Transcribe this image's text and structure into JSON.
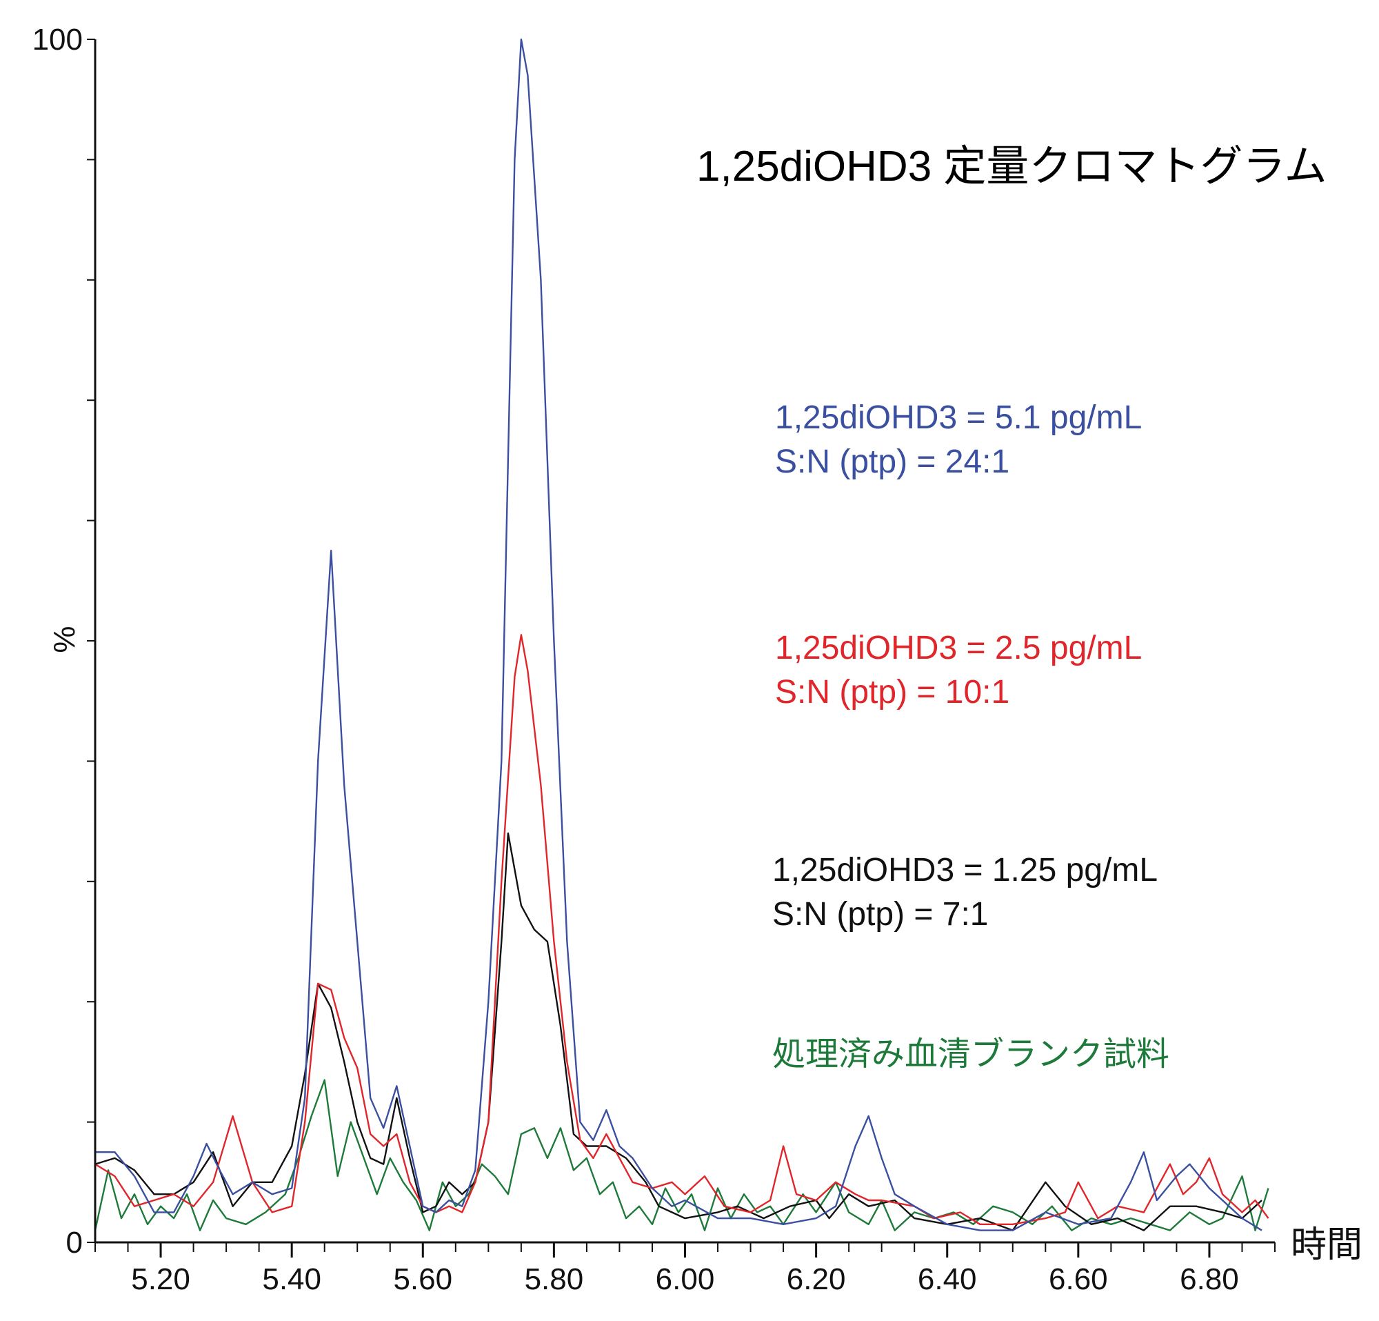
{
  "chart_data": {
    "type": "line",
    "title": "1,25diOHD3 定量クロマトグラム",
    "xlabel": "時間",
    "ylabel": "%",
    "xlim": [
      5.1,
      6.9
    ],
    "ylim": [
      0,
      100
    ],
    "x_ticks": [
      "5.20",
      "5.40",
      "5.60",
      "5.80",
      "6.00",
      "6.20",
      "6.40",
      "6.60",
      "6.80"
    ],
    "x_tick_values": [
      5.2,
      5.4,
      5.6,
      5.8,
      6.0,
      6.2,
      6.4,
      6.6,
      6.8
    ],
    "y_ticks": [
      "0",
      "100"
    ],
    "y_tick_values": [
      0,
      100
    ],
    "grid": false,
    "series": [
      {
        "name": "1,25diOHD3 = 5.1 pg/mL",
        "sn": "S:N (ptp) = 24:1",
        "color": "#3a4fa0",
        "points": [
          [
            5.1,
            7.5
          ],
          [
            5.13,
            7.5
          ],
          [
            5.16,
            5.5
          ],
          [
            5.19,
            2.5
          ],
          [
            5.22,
            2.5
          ],
          [
            5.25,
            5.5
          ],
          [
            5.27,
            8.2
          ],
          [
            5.29,
            6.0
          ],
          [
            5.31,
            4.0
          ],
          [
            5.34,
            5.0
          ],
          [
            5.37,
            4.0
          ],
          [
            5.4,
            4.5
          ],
          [
            5.42,
            12.0
          ],
          [
            5.44,
            40.0
          ],
          [
            5.46,
            57.5
          ],
          [
            5.48,
            38.0
          ],
          [
            5.5,
            25.0
          ],
          [
            5.52,
            12.0
          ],
          [
            5.54,
            9.5
          ],
          [
            5.56,
            13.0
          ],
          [
            5.58,
            8.0
          ],
          [
            5.6,
            3.0
          ],
          [
            5.62,
            2.5
          ],
          [
            5.64,
            3.5
          ],
          [
            5.66,
            3.0
          ],
          [
            5.68,
            6.0
          ],
          [
            5.7,
            20.0
          ],
          [
            5.72,
            40.0
          ],
          [
            5.74,
            90.0
          ],
          [
            5.75,
            100.0
          ],
          [
            5.76,
            97.0
          ],
          [
            5.78,
            80.0
          ],
          [
            5.8,
            50.0
          ],
          [
            5.82,
            25.0
          ],
          [
            5.84,
            10.0
          ],
          [
            5.86,
            8.5
          ],
          [
            5.88,
            11.0
          ],
          [
            5.9,
            8.0
          ],
          [
            5.92,
            7.0
          ],
          [
            5.95,
            4.5
          ],
          [
            5.98,
            3.0
          ],
          [
            6.0,
            3.5
          ],
          [
            6.05,
            2.0
          ],
          [
            6.1,
            2.0
          ],
          [
            6.15,
            1.5
          ],
          [
            6.2,
            2.0
          ],
          [
            6.23,
            3.0
          ],
          [
            6.26,
            8.0
          ],
          [
            6.28,
            10.5
          ],
          [
            6.3,
            7.0
          ],
          [
            6.32,
            4.0
          ],
          [
            6.35,
            3.0
          ],
          [
            6.4,
            1.5
          ],
          [
            6.45,
            1.0
          ],
          [
            6.5,
            1.0
          ],
          [
            6.55,
            2.5
          ],
          [
            6.6,
            1.5
          ],
          [
            6.65,
            2.0
          ],
          [
            6.68,
            5.0
          ],
          [
            6.7,
            7.5
          ],
          [
            6.72,
            3.5
          ],
          [
            6.75,
            5.5
          ],
          [
            6.77,
            6.5
          ],
          [
            6.8,
            4.5
          ],
          [
            6.83,
            3.0
          ],
          [
            6.85,
            2.0
          ],
          [
            6.88,
            1.0
          ]
        ]
      },
      {
        "name": "1,25diOHD3 = 2.5 pg/mL",
        "sn": "S:N (ptp) = 10:1",
        "color": "#e0262b",
        "points": [
          [
            5.1,
            6.5
          ],
          [
            5.13,
            5.5
          ],
          [
            5.16,
            3.0
          ],
          [
            5.19,
            3.5
          ],
          [
            5.22,
            4.0
          ],
          [
            5.25,
            3.0
          ],
          [
            5.28,
            5.0
          ],
          [
            5.31,
            10.5
          ],
          [
            5.34,
            5.0
          ],
          [
            5.37,
            2.5
          ],
          [
            5.4,
            3.0
          ],
          [
            5.42,
            10.0
          ],
          [
            5.44,
            21.5
          ],
          [
            5.46,
            21.0
          ],
          [
            5.48,
            17.0
          ],
          [
            5.5,
            14.5
          ],
          [
            5.52,
            9.0
          ],
          [
            5.54,
            8.0
          ],
          [
            5.56,
            9.0
          ],
          [
            5.58,
            5.0
          ],
          [
            5.6,
            3.0
          ],
          [
            5.62,
            2.5
          ],
          [
            5.64,
            3.0
          ],
          [
            5.66,
            2.5
          ],
          [
            5.68,
            5.0
          ],
          [
            5.7,
            10.0
          ],
          [
            5.72,
            30.0
          ],
          [
            5.74,
            47.0
          ],
          [
            5.75,
            50.5
          ],
          [
            5.76,
            47.5
          ],
          [
            5.78,
            38.0
          ],
          [
            5.8,
            25.0
          ],
          [
            5.82,
            15.0
          ],
          [
            5.84,
            8.5
          ],
          [
            5.86,
            7.0
          ],
          [
            5.88,
            9.0
          ],
          [
            5.9,
            7.0
          ],
          [
            5.92,
            5.0
          ],
          [
            5.95,
            4.5
          ],
          [
            5.98,
            5.0
          ],
          [
            6.0,
            4.0
          ],
          [
            6.03,
            5.5
          ],
          [
            6.06,
            3.0
          ],
          [
            6.1,
            2.5
          ],
          [
            6.13,
            3.5
          ],
          [
            6.15,
            8.0
          ],
          [
            6.17,
            4.0
          ],
          [
            6.2,
            3.5
          ],
          [
            6.23,
            5.0
          ],
          [
            6.26,
            4.0
          ],
          [
            6.28,
            3.5
          ],
          [
            6.3,
            3.5
          ],
          [
            6.35,
            3.0
          ],
          [
            6.38,
            2.0
          ],
          [
            6.42,
            2.5
          ],
          [
            6.45,
            1.5
          ],
          [
            6.5,
            1.5
          ],
          [
            6.55,
            2.0
          ],
          [
            6.58,
            2.5
          ],
          [
            6.6,
            5.0
          ],
          [
            6.63,
            2.0
          ],
          [
            6.66,
            3.0
          ],
          [
            6.7,
            2.5
          ],
          [
            6.74,
            6.5
          ],
          [
            6.76,
            4.0
          ],
          [
            6.78,
            5.0
          ],
          [
            6.8,
            7.0
          ],
          [
            6.82,
            4.0
          ],
          [
            6.85,
            2.5
          ],
          [
            6.87,
            3.5
          ],
          [
            6.89,
            2.0
          ]
        ]
      },
      {
        "name": "1,25diOHD3 = 1.25 pg/mL",
        "sn": "S:N (ptp) = 7:1",
        "color": "#111111",
        "points": [
          [
            5.1,
            6.5
          ],
          [
            5.13,
            7.0
          ],
          [
            5.16,
            6.0
          ],
          [
            5.19,
            4.0
          ],
          [
            5.22,
            4.0
          ],
          [
            5.25,
            5.0
          ],
          [
            5.28,
            7.5
          ],
          [
            5.31,
            3.0
          ],
          [
            5.34,
            5.0
          ],
          [
            5.37,
            5.0
          ],
          [
            5.4,
            8.0
          ],
          [
            5.42,
            14.0
          ],
          [
            5.44,
            21.5
          ],
          [
            5.46,
            19.5
          ],
          [
            5.48,
            15.0
          ],
          [
            5.5,
            10.0
          ],
          [
            5.52,
            7.0
          ],
          [
            5.54,
            6.5
          ],
          [
            5.56,
            12.0
          ],
          [
            5.58,
            7.0
          ],
          [
            5.6,
            2.5
          ],
          [
            5.62,
            3.0
          ],
          [
            5.64,
            5.0
          ],
          [
            5.66,
            4.0
          ],
          [
            5.68,
            5.0
          ],
          [
            5.7,
            10.0
          ],
          [
            5.72,
            25.0
          ],
          [
            5.73,
            34.0
          ],
          [
            5.75,
            28.0
          ],
          [
            5.77,
            26.0
          ],
          [
            5.79,
            25.0
          ],
          [
            5.81,
            18.0
          ],
          [
            5.83,
            9.0
          ],
          [
            5.85,
            8.0
          ],
          [
            5.88,
            8.0
          ],
          [
            5.91,
            7.0
          ],
          [
            5.94,
            5.0
          ],
          [
            5.96,
            3.0
          ],
          [
            5.98,
            2.5
          ],
          [
            6.0,
            2.0
          ],
          [
            6.05,
            2.5
          ],
          [
            6.08,
            3.0
          ],
          [
            6.12,
            2.0
          ],
          [
            6.16,
            3.0
          ],
          [
            6.2,
            3.5
          ],
          [
            6.22,
            2.0
          ],
          [
            6.25,
            4.0
          ],
          [
            6.28,
            3.0
          ],
          [
            6.32,
            3.5
          ],
          [
            6.35,
            2.0
          ],
          [
            6.4,
            1.5
          ],
          [
            6.45,
            2.0
          ],
          [
            6.5,
            1.0
          ],
          [
            6.55,
            5.0
          ],
          [
            6.58,
            3.0
          ],
          [
            6.62,
            1.5
          ],
          [
            6.66,
            2.0
          ],
          [
            6.7,
            1.0
          ],
          [
            6.74,
            3.0
          ],
          [
            6.78,
            3.0
          ],
          [
            6.82,
            2.5
          ],
          [
            6.85,
            2.0
          ],
          [
            6.88,
            3.5
          ]
        ]
      },
      {
        "name": "処理済み血清ブランク試料",
        "color": "#1e7a3a",
        "points": [
          [
            5.1,
            1.0
          ],
          [
            5.12,
            6.0
          ],
          [
            5.14,
            2.0
          ],
          [
            5.16,
            4.0
          ],
          [
            5.18,
            1.5
          ],
          [
            5.2,
            3.0
          ],
          [
            5.22,
            2.0
          ],
          [
            5.24,
            4.0
          ],
          [
            5.26,
            1.0
          ],
          [
            5.28,
            3.5
          ],
          [
            5.3,
            2.0
          ],
          [
            5.33,
            1.5
          ],
          [
            5.36,
            2.5
          ],
          [
            5.39,
            4.0
          ],
          [
            5.41,
            7.0
          ],
          [
            5.43,
            10.5
          ],
          [
            5.45,
            13.5
          ],
          [
            5.47,
            5.5
          ],
          [
            5.49,
            10.0
          ],
          [
            5.51,
            7.0
          ],
          [
            5.53,
            4.0
          ],
          [
            5.55,
            7.0
          ],
          [
            5.57,
            5.0
          ],
          [
            5.59,
            3.5
          ],
          [
            5.61,
            1.0
          ],
          [
            5.63,
            5.0
          ],
          [
            5.65,
            3.0
          ],
          [
            5.67,
            4.0
          ],
          [
            5.69,
            6.5
          ],
          [
            5.71,
            5.5
          ],
          [
            5.73,
            4.0
          ],
          [
            5.75,
            9.0
          ],
          [
            5.77,
            9.5
          ],
          [
            5.79,
            7.0
          ],
          [
            5.81,
            9.5
          ],
          [
            5.83,
            6.0
          ],
          [
            5.85,
            7.0
          ],
          [
            5.87,
            4.0
          ],
          [
            5.89,
            5.0
          ],
          [
            5.91,
            2.0
          ],
          [
            5.93,
            3.0
          ],
          [
            5.95,
            1.5
          ],
          [
            5.97,
            4.5
          ],
          [
            5.99,
            2.5
          ],
          [
            6.01,
            4.0
          ],
          [
            6.03,
            1.0
          ],
          [
            6.05,
            4.5
          ],
          [
            6.07,
            2.0
          ],
          [
            6.09,
            4.0
          ],
          [
            6.11,
            2.5
          ],
          [
            6.13,
            3.0
          ],
          [
            6.15,
            1.5
          ],
          [
            6.18,
            4.0
          ],
          [
            6.2,
            2.5
          ],
          [
            6.23,
            5.0
          ],
          [
            6.25,
            2.5
          ],
          [
            6.28,
            1.5
          ],
          [
            6.3,
            3.5
          ],
          [
            6.32,
            1.0
          ],
          [
            6.35,
            2.5
          ],
          [
            6.38,
            2.0
          ],
          [
            6.41,
            2.5
          ],
          [
            6.44,
            1.5
          ],
          [
            6.47,
            3.0
          ],
          [
            6.5,
            2.5
          ],
          [
            6.53,
            1.5
          ],
          [
            6.56,
            3.0
          ],
          [
            6.59,
            1.0
          ],
          [
            6.62,
            2.0
          ],
          [
            6.65,
            1.5
          ],
          [
            6.68,
            2.0
          ],
          [
            6.71,
            1.5
          ],
          [
            6.74,
            1.0
          ],
          [
            6.77,
            2.5
          ],
          [
            6.8,
            1.5
          ],
          [
            6.82,
            2.0
          ],
          [
            6.85,
            5.5
          ],
          [
            6.87,
            1.0
          ],
          [
            6.89,
            4.5
          ]
        ]
      }
    ],
    "annotations": [
      {
        "text": "1,25diOHD3 = 5.1 pg/mL",
        "color": "#3a4fa0"
      },
      {
        "text": "S:N (ptp) = 24:1",
        "color": "#3a4fa0"
      },
      {
        "text": "1,25diOHD3 = 2.5 pg/mL",
        "color": "#e0262b"
      },
      {
        "text": "S:N (ptp) = 10:1",
        "color": "#e0262b"
      },
      {
        "text": "1,25diOHD3 = 1.25 pg/mL",
        "color": "#111111"
      },
      {
        "text": "S:N (ptp) = 7:1",
        "color": "#111111"
      },
      {
        "text": "処理済み血清ブランク試料",
        "color": "#1e7a3a"
      }
    ]
  }
}
